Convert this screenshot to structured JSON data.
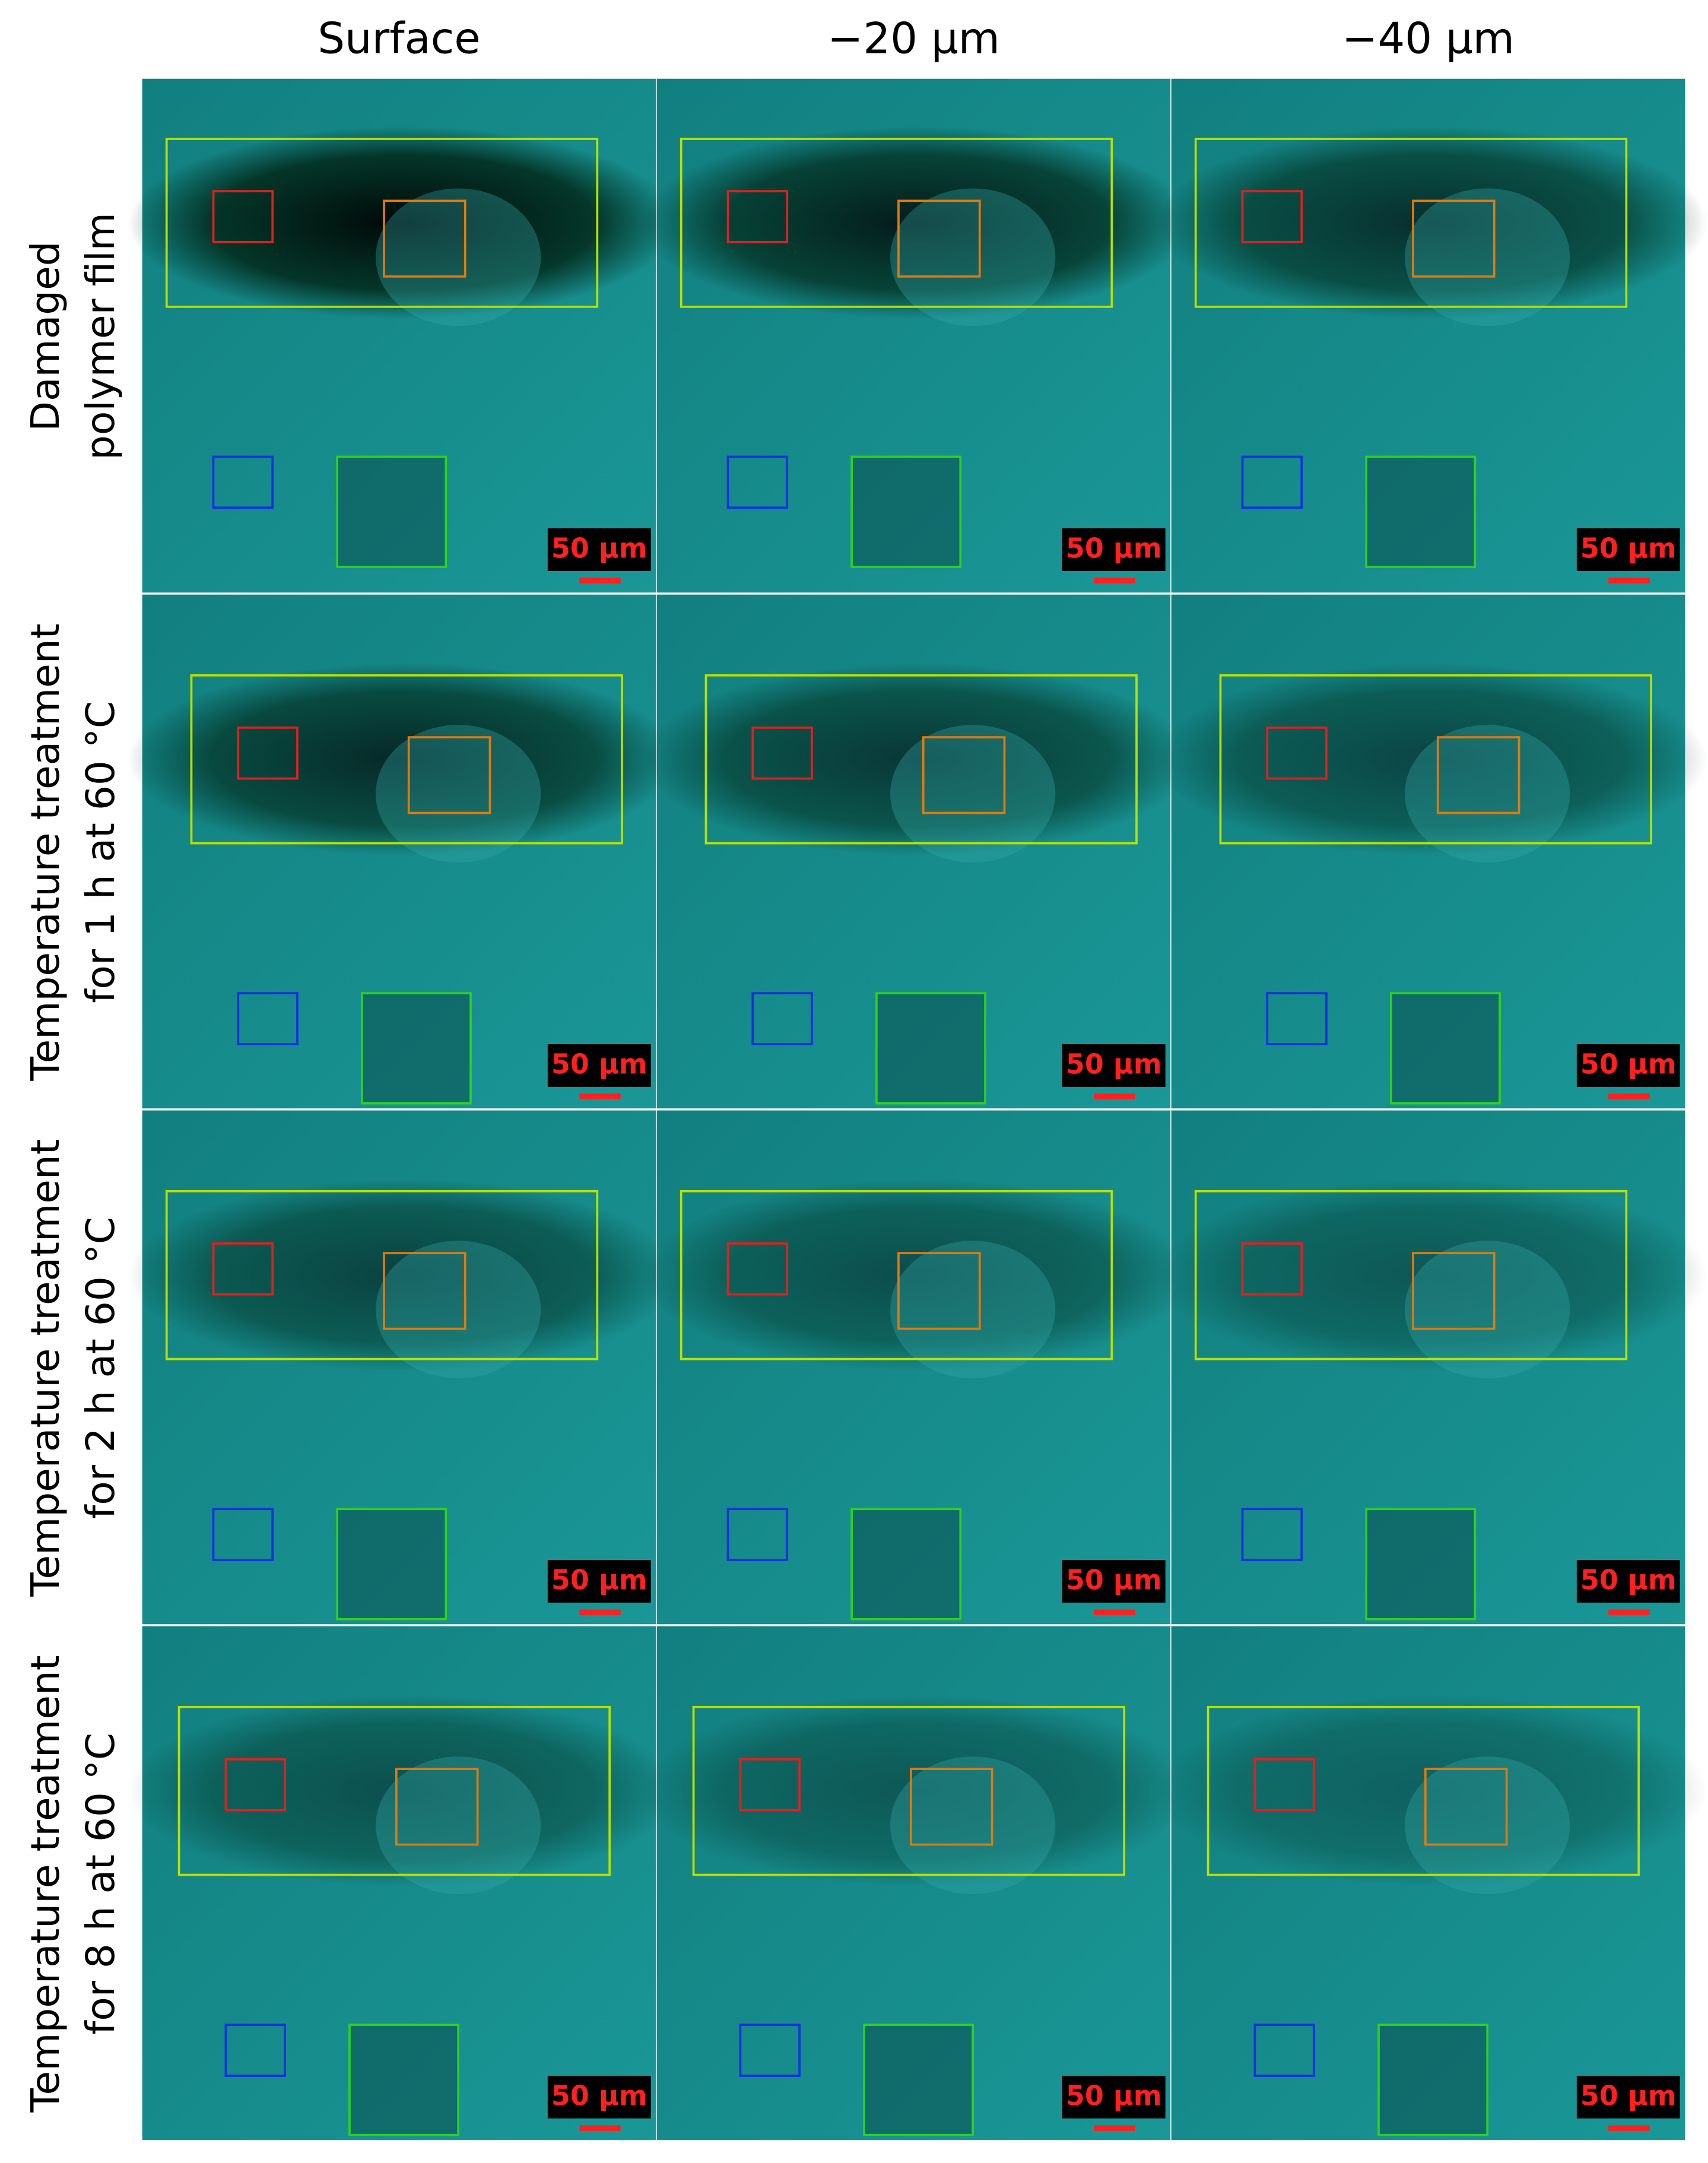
{
  "columns": [
    "Surface",
    "−20 µm",
    "−40 µm"
  ],
  "rows": [
    {
      "label": [
        "Damaged",
        "polymer film"
      ]
    },
    {
      "label": [
        "Temperature treatment",
        "for 1 h at 60 °C"
      ]
    },
    {
      "label": [
        "Temperature treatment",
        "for 2 h at 60 °C"
      ]
    },
    {
      "label": [
        "Temperature treatment",
        "for 8 h at 60 °C"
      ]
    }
  ],
  "scale_bar": "50 µm"
}
